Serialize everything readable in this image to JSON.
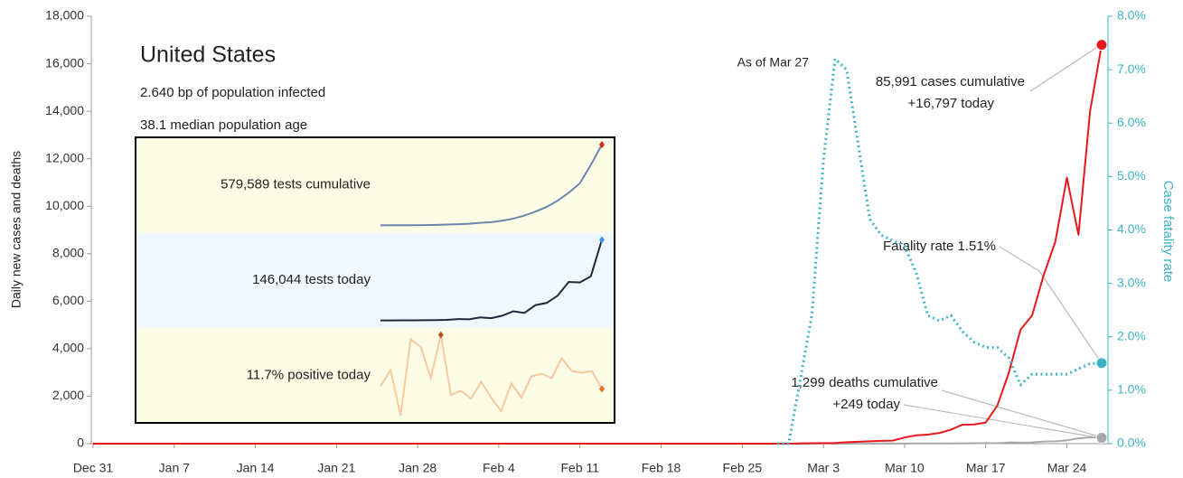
{
  "chart_data": {
    "type": "line",
    "title": "United States",
    "subtitle": [
      "2.640 bp of population infected",
      "38.1 median population age"
    ],
    "ylabel": "Daily new cases and deaths",
    "y2label": "Case fatality rate",
    "categories": [
      "Dec 31",
      null,
      null,
      null,
      null,
      null,
      null,
      "Jan 7",
      null,
      null,
      null,
      null,
      null,
      null,
      "Jan 14",
      null,
      null,
      null,
      null,
      null,
      null,
      "Jan 21",
      null,
      null,
      null,
      null,
      null,
      null,
      "Jan 28",
      null,
      null,
      null,
      null,
      null,
      null,
      "Feb 4",
      null,
      null,
      null,
      null,
      null,
      null,
      "Feb 11",
      null,
      null,
      null,
      null,
      null,
      null,
      "Feb 18",
      null,
      null,
      null,
      null,
      null,
      null,
      "Feb 25",
      null,
      null,
      null,
      null,
      null,
      null,
      "Mar 3",
      null,
      null,
      null,
      null,
      null,
      null,
      "Mar 10",
      null,
      null,
      null,
      null,
      null,
      null,
      "Mar 17",
      null,
      null,
      null,
      null,
      null,
      null,
      "Mar 24",
      null,
      null,
      null
    ],
    "ylim": [
      0,
      18000
    ],
    "yticks": [
      0,
      {
        "value": 2000,
        "label": "2,000"
      },
      {
        "value": 4000,
        "label": "4,000"
      },
      {
        "value": 6000,
        "label": "6,000"
      },
      {
        "value": 8000,
        "label": "8,000"
      },
      {
        "value": 10000,
        "label": "10,000"
      },
      {
        "value": 12000,
        "label": "12,000"
      },
      {
        "value": 14000,
        "label": "14,000"
      },
      {
        "value": 16000,
        "label": "16,000"
      },
      {
        "value": 18000,
        "label": "18,000"
      }
    ],
    "y2lim": [
      0,
      8
    ],
    "y2ticks": [
      {
        "value": 0,
        "label": "0.0%"
      },
      {
        "value": 1,
        "label": "1.0%"
      },
      {
        "value": 2,
        "label": "2.0%"
      },
      {
        "value": 3,
        "label": "3.0%"
      },
      {
        "value": 4,
        "label": "4.0%"
      },
      {
        "value": 5,
        "label": "5.0%"
      },
      {
        "value": 6,
        "label": "6.0%"
      },
      {
        "value": 7,
        "label": "7.0%"
      },
      {
        "value": 8,
        "label": "8.0%"
      }
    ],
    "series": [
      {
        "name": "Daily new deaths",
        "color": "#a9a9a9",
        "values": [
          0,
          0,
          0,
          0,
          0,
          0,
          0,
          0,
          0,
          0,
          0,
          0,
          0,
          0,
          0,
          0,
          0,
          0,
          0,
          0,
          0,
          0,
          0,
          0,
          0,
          0,
          0,
          0,
          0,
          0,
          0,
          0,
          0,
          0,
          0,
          0,
          0,
          0,
          0,
          0,
          0,
          0,
          0,
          0,
          0,
          0,
          0,
          0,
          0,
          0,
          0,
          0,
          0,
          0,
          0,
          0,
          0,
          0,
          0,
          0,
          0,
          1,
          1,
          3,
          2,
          2,
          3,
          5,
          4,
          4,
          4,
          8,
          9,
          10,
          10,
          14,
          17,
          23,
          18,
          50,
          41,
          52,
          90,
          100,
          140,
          225,
          268,
          249
        ]
      },
      {
        "name": "Daily new cases",
        "color": "#e8191d",
        "values": [
          0,
          0,
          0,
          0,
          0,
          0,
          0,
          0,
          0,
          0,
          0,
          0,
          0,
          0,
          0,
          0,
          0,
          0,
          0,
          0,
          0,
          0,
          0,
          0,
          0,
          0,
          0,
          0,
          0,
          0,
          0,
          0,
          0,
          0,
          0,
          0,
          0,
          0,
          0,
          0,
          0,
          0,
          0,
          0,
          0,
          0,
          0,
          0,
          0,
          0,
          0,
          0,
          0,
          0,
          0,
          0,
          0,
          0,
          0,
          0,
          0,
          10,
          20,
          25,
          30,
          60,
          80,
          100,
          120,
          130,
          260,
          350,
          380,
          450,
          590,
          800,
          810,
          890,
          1600,
          3000,
          4800,
          5400,
          7100,
          8500,
          11200,
          8800,
          14000,
          16797
        ]
      },
      {
        "name": "Case fatality rate",
        "color": "#3fb3c8",
        "axis": "y2",
        "dotted": true,
        "values": [
          null,
          null,
          null,
          null,
          null,
          null,
          null,
          null,
          null,
          null,
          null,
          null,
          null,
          null,
          null,
          null,
          null,
          null,
          null,
          null,
          null,
          null,
          null,
          null,
          null,
          null,
          null,
          null,
          null,
          null,
          null,
          null,
          null,
          null,
          null,
          null,
          null,
          null,
          null,
          null,
          null,
          null,
          null,
          null,
          null,
          null,
          null,
          null,
          null,
          null,
          null,
          null,
          null,
          null,
          null,
          null,
          null,
          null,
          null,
          0,
          0,
          1.2,
          2.4,
          5.3,
          7.2,
          7.0,
          5.6,
          4.2,
          3.9,
          3.8,
          3.7,
          3.2,
          2.4,
          2.3,
          2.4,
          2.1,
          1.9,
          1.8,
          1.8,
          1.6,
          1.1,
          1.3,
          1.3,
          1.3,
          1.3,
          1.4,
          1.5,
          1.51
        ]
      }
    ],
    "annotations": [
      "As of Mar 27",
      "85,991 cases cumulative",
      "+16,797 today",
      "Fatality rate 1.51%",
      "1,299 deaths cumulative",
      "+249 today"
    ],
    "inset": {
      "series": [
        {
          "name": "579,589 tests cumulative",
          "color": "#6a86ad",
          "marker_color": "#d62a1e",
          "band": "#fdfce6",
          "values": [
            4500,
            4700,
            5000,
            5400,
            6200,
            7800,
            9500,
            12000,
            15800,
            22000,
            27000,
            37000,
            52000,
            74000,
            102000,
            135000,
            180000,
            236000,
            303000,
            433545,
            579589
          ]
        },
        {
          "name": "146,044 tests today",
          "color": "#1f2a3a",
          "marker_color": "#3a9bd8",
          "band": "#eef8fd",
          "values": [
            500,
            400,
            700,
            600,
            800,
            1000,
            1500,
            3000,
            2500,
            6000,
            4500,
            9000,
            17000,
            14000,
            28000,
            32000,
            45000,
            70000,
            69000,
            80000,
            146044
          ]
        },
        {
          "name": "11.7% positive today",
          "color": "#f6c9a0",
          "marker_color": "#e8731f",
          "max_marker_color": "#b2561e",
          "band": "#fdfce6",
          "values": [
            12.4,
            16.6,
            4.7,
            24.6,
            22.7,
            14.5,
            25.8,
            10.1,
            11.2,
            9.1,
            13.6,
            9.4,
            5.9,
            13.1,
            9.4,
            15.0,
            15.7,
            14.5,
            19.7,
            16.4,
            15.9,
            16.4,
            11.7
          ]
        }
      ]
    }
  }
}
